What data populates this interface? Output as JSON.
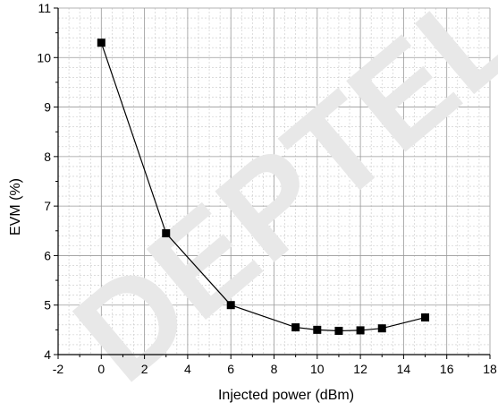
{
  "watermark": "DEPTEL",
  "chart_data": {
    "type": "line",
    "xlabel": "Injected power (dBm)",
    "ylabel": "EVM (%)",
    "xlim": [
      -2,
      18
    ],
    "ylim": [
      4,
      11
    ],
    "x_ticks": [
      -2,
      0,
      2,
      4,
      6,
      8,
      10,
      12,
      14,
      16,
      18
    ],
    "y_ticks": [
      4,
      5,
      6,
      7,
      8,
      9,
      10,
      11
    ],
    "grid": true,
    "marker": "square",
    "series": [
      {
        "x": [
          0,
          3,
          6,
          9,
          10,
          11,
          12,
          13,
          15
        ],
        "y": [
          10.3,
          6.45,
          5.0,
          4.55,
          4.5,
          4.48,
          4.49,
          4.53,
          4.75
        ]
      }
    ]
  }
}
